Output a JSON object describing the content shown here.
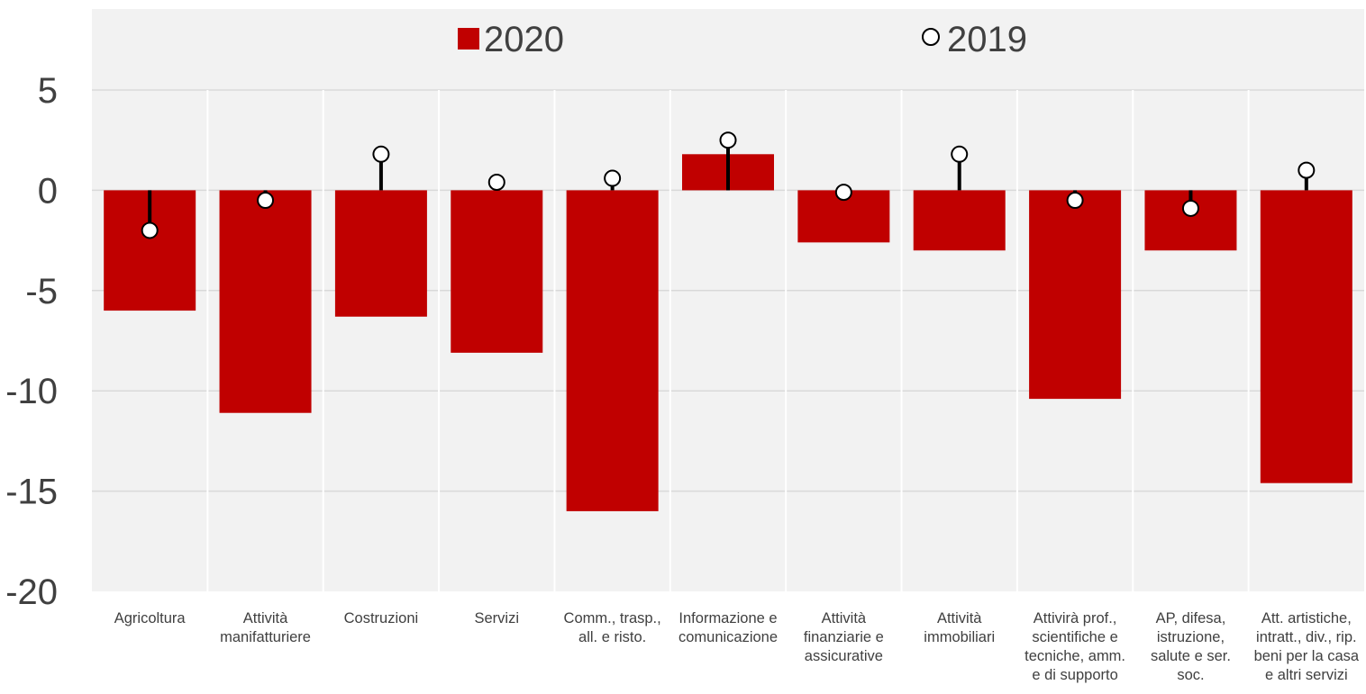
{
  "chart_data": {
    "type": "bar",
    "categories": [
      [
        "Agricoltura"
      ],
      [
        "Attività",
        "manifatturiere"
      ],
      [
        "Costruzioni"
      ],
      [
        "Servizi"
      ],
      [
        "Comm., trasp.,",
        "all. e risto."
      ],
      [
        "Informazione e",
        "comunicazione"
      ],
      [
        "Attività",
        "finanziarie e",
        "assicurative"
      ],
      [
        "Attività",
        "immobiliari"
      ],
      [
        "Attivirà prof.,",
        "scientifiche e",
        "tecniche, amm.",
        "e di supporto"
      ],
      [
        "AP, difesa,",
        "istruzione,",
        "salute e ser.",
        "soc."
      ],
      [
        "Att. artistiche,",
        "intratt., div., rip.",
        "beni per la casa",
        "e altri servizi"
      ]
    ],
    "series": [
      {
        "name": "2020",
        "type": "bar",
        "values": [
          -6.0,
          -11.1,
          -6.3,
          -8.1,
          -16.0,
          1.8,
          -2.6,
          -3.0,
          -10.4,
          -3.0,
          -14.6
        ]
      },
      {
        "name": "2019",
        "type": "marker",
        "values": [
          -2.0,
          -0.5,
          1.8,
          0.4,
          0.6,
          2.5,
          -0.1,
          1.8,
          -0.5,
          -0.9,
          1.0
        ]
      }
    ],
    "ylim": [
      -20,
      5
    ],
    "yticks": [
      5,
      0,
      -5,
      -10,
      -15,
      -20
    ],
    "grid": true,
    "legend_position": "top",
    "colors": {
      "bar": "#c00000",
      "marker_fill": "#ffffff",
      "marker_stroke": "#000000",
      "stem": "#000000",
      "plot_background": "#f2f2f2",
      "grid": "#d9d9d9",
      "axis_text": "#404040"
    }
  }
}
